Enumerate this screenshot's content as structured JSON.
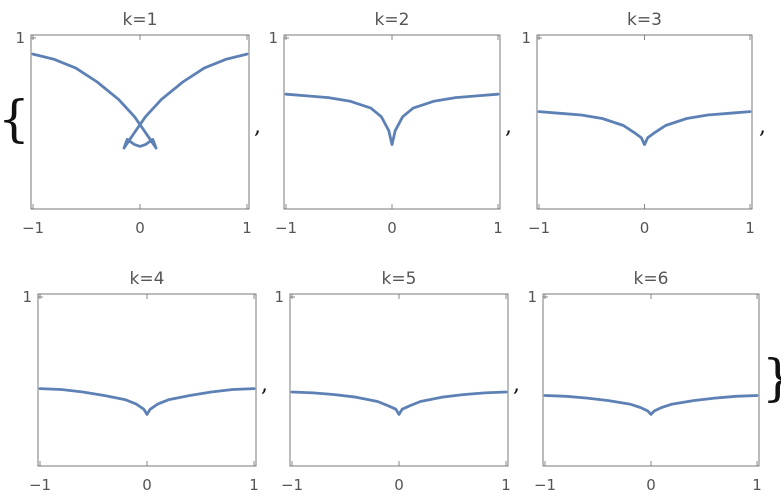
{
  "colors": {
    "series": "#5e81b5",
    "frame": "#6b6b6b",
    "text": "#555555"
  },
  "list_open": "{",
  "list_close": "}",
  "separator": ",",
  "chart_data": [
    {
      "type": "line",
      "title": "k=1",
      "xlim": [
        -1,
        1
      ],
      "ylim": [
        0,
        1
      ],
      "x_ticks": [
        "−1",
        "0",
        "1"
      ],
      "y_ticks": [
        "1"
      ],
      "series": [
        {
          "x": [
            -1.0,
            -0.8,
            -0.6,
            -0.4,
            -0.2,
            -0.05,
            0.05,
            0.15,
            0.12,
            0.05,
            0.0,
            -0.05,
            -0.12,
            -0.15,
            -0.05,
            0.05,
            0.2,
            0.4,
            0.6,
            0.8,
            1.0
          ],
          "y": [
            0.89,
            0.86,
            0.81,
            0.73,
            0.63,
            0.53,
            0.44,
            0.35,
            0.4,
            0.37,
            0.36,
            0.37,
            0.4,
            0.35,
            0.44,
            0.53,
            0.63,
            0.73,
            0.81,
            0.86,
            0.89
          ]
        }
      ]
    },
    {
      "type": "line",
      "title": "k=2",
      "xlim": [
        -1,
        1
      ],
      "ylim": [
        0,
        1
      ],
      "x_ticks": [
        "−1",
        "0",
        "1"
      ],
      "y_ticks": [
        "1"
      ],
      "series": [
        {
          "x": [
            -1.0,
            -0.8,
            -0.6,
            -0.4,
            -0.2,
            -0.1,
            -0.03,
            0.0,
            0.03,
            0.1,
            0.2,
            0.4,
            0.6,
            0.8,
            1.0
          ],
          "y": [
            0.66,
            0.65,
            0.64,
            0.62,
            0.58,
            0.53,
            0.45,
            0.37,
            0.45,
            0.53,
            0.58,
            0.62,
            0.64,
            0.65,
            0.66
          ]
        }
      ]
    },
    {
      "type": "line",
      "title": "k=3",
      "xlim": [
        -1,
        1
      ],
      "ylim": [
        0,
        1
      ],
      "x_ticks": [
        "−1",
        "0",
        "1"
      ],
      "y_ticks": [
        "1"
      ],
      "series": [
        {
          "x": [
            -1.0,
            -0.8,
            -0.6,
            -0.4,
            -0.2,
            -0.1,
            -0.03,
            0.0,
            0.03,
            0.1,
            0.2,
            0.4,
            0.6,
            0.8,
            1.0
          ],
          "y": [
            0.56,
            0.55,
            0.54,
            0.52,
            0.48,
            0.44,
            0.41,
            0.37,
            0.41,
            0.44,
            0.48,
            0.52,
            0.54,
            0.55,
            0.56
          ]
        }
      ]
    },
    {
      "type": "line",
      "title": "k=4",
      "xlim": [
        -1,
        1
      ],
      "ylim": [
        0,
        1
      ],
      "x_ticks": [
        "−1",
        "0",
        "1"
      ],
      "y_ticks": [
        "1"
      ],
      "series": [
        {
          "x": [
            -1.0,
            -0.8,
            -0.6,
            -0.4,
            -0.2,
            -0.1,
            -0.03,
            0.0,
            0.03,
            0.1,
            0.2,
            0.4,
            0.6,
            0.8,
            1.0
          ],
          "y": [
            0.45,
            0.445,
            0.43,
            0.41,
            0.385,
            0.36,
            0.33,
            0.3,
            0.33,
            0.36,
            0.385,
            0.41,
            0.43,
            0.445,
            0.45
          ]
        }
      ]
    },
    {
      "type": "line",
      "title": "k=5",
      "xlim": [
        -1,
        1
      ],
      "ylim": [
        0,
        1
      ],
      "x_ticks": [
        "−1",
        "0",
        "1"
      ],
      "y_ticks": [
        "1"
      ],
      "series": [
        {
          "x": [
            -1.0,
            -0.8,
            -0.6,
            -0.4,
            -0.2,
            -0.1,
            -0.03,
            0.0,
            0.03,
            0.1,
            0.2,
            0.4,
            0.6,
            0.8,
            1.0
          ],
          "y": [
            0.43,
            0.425,
            0.415,
            0.4,
            0.375,
            0.35,
            0.33,
            0.3,
            0.33,
            0.35,
            0.375,
            0.4,
            0.415,
            0.425,
            0.43
          ]
        }
      ]
    },
    {
      "type": "line",
      "title": "k=6",
      "xlim": [
        -1,
        1
      ],
      "ylim": [
        0,
        1
      ],
      "x_ticks": [
        "−1",
        "0",
        "1"
      ],
      "y_ticks": [
        "1"
      ],
      "series": [
        {
          "x": [
            -1.0,
            -0.8,
            -0.6,
            -0.4,
            -0.2,
            -0.1,
            -0.03,
            0.0,
            0.03,
            0.1,
            0.2,
            0.4,
            0.6,
            0.8,
            1.0
          ],
          "y": [
            0.41,
            0.405,
            0.395,
            0.38,
            0.36,
            0.34,
            0.32,
            0.3,
            0.32,
            0.34,
            0.36,
            0.38,
            0.395,
            0.405,
            0.41
          ]
        }
      ]
    }
  ]
}
